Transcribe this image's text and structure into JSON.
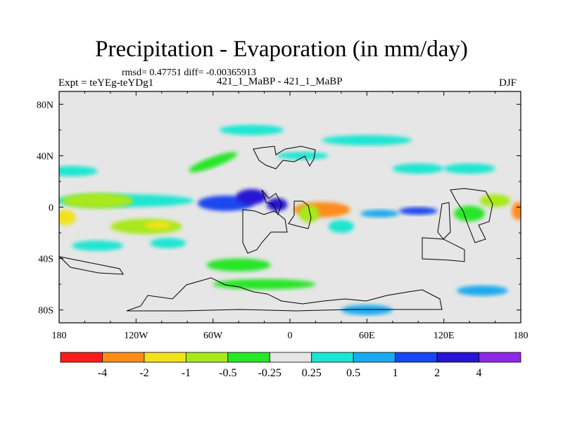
{
  "chart_data": {
    "type": "heatmap",
    "title": "Precipitation - Evaporation (in mm/day)",
    "stats_line": "rmsd= 0.47751  diff= -0.00365913",
    "left_label": "Expt = teYEg-teYDg1",
    "center_label": "421_1_MaBP - 421_1_MaBP",
    "right_label": "DJF",
    "projection": "cylindrical equidistant, lon 180..180 (centered on 0)",
    "xlim": [
      -180,
      180
    ],
    "ylim": [
      -90,
      90
    ],
    "x_ticks": [
      {
        "value": -180,
        "label": "180"
      },
      {
        "value": -120,
        "label": "120W"
      },
      {
        "value": -60,
        "label": "60W"
      },
      {
        "value": 0,
        "label": "0"
      },
      {
        "value": 60,
        "label": "60E"
      },
      {
        "value": 120,
        "label": "120E"
      },
      {
        "value": 180,
        "label": "180"
      }
    ],
    "y_ticks": [
      {
        "value": 80,
        "label": "80N"
      },
      {
        "value": 40,
        "label": "40N"
      },
      {
        "value": 0,
        "label": "0"
      },
      {
        "value": -40,
        "label": "40S"
      },
      {
        "value": -80,
        "label": "80S"
      }
    ],
    "colorbar": {
      "levels": [
        "-4",
        "-2",
        "-1",
        "-0.5",
        "-0.25",
        "0.25",
        "0.5",
        "1",
        "2",
        "4"
      ],
      "colors": [
        "#ff1a1a",
        "#ff8c1a",
        "#f2e21a",
        "#a8e81a",
        "#28e628",
        "#e6e6e6",
        "#1ae6d2",
        "#1aaaee",
        "#1a46ee",
        "#2814d2",
        "#8c28e6"
      ]
    },
    "anomalies": [
      {
        "lon": -130,
        "lat": 5,
        "rx": 55,
        "ry": 5,
        "value": 0.3,
        "angle": 0
      },
      {
        "lon": -150,
        "lat": 5,
        "rx": 28,
        "ry": 6,
        "value": -0.7,
        "angle": 0
      },
      {
        "lon": -175,
        "lat": -8,
        "rx": 8,
        "ry": 6,
        "value": -1.5,
        "angle": 0
      },
      {
        "lon": -50,
        "lat": 3,
        "rx": 22,
        "ry": 6,
        "value": 1.5,
        "angle": 0
      },
      {
        "lon": -30,
        "lat": 8,
        "rx": 12,
        "ry": 6,
        "value": 3.0,
        "angle": 0
      },
      {
        "lon": -10,
        "lat": 2,
        "rx": 8,
        "ry": 5,
        "value": 2.5,
        "angle": 0
      },
      {
        "lon": 25,
        "lat": -2,
        "rx": 22,
        "ry": 6,
        "value": -2.2,
        "angle": 0
      },
      {
        "lon": 15,
        "lat": -5,
        "rx": 8,
        "ry": 7,
        "value": -0.7,
        "angle": 0
      },
      {
        "lon": -112,
        "lat": -15,
        "rx": 28,
        "ry": 6,
        "value": -0.7,
        "angle": 0
      },
      {
        "lon": -103,
        "lat": -14,
        "rx": 10,
        "ry": 3,
        "value": -1.5,
        "angle": 0
      },
      {
        "lon": -95,
        "lat": -28,
        "rx": 14,
        "ry": 4,
        "value": 0.4,
        "angle": 0
      },
      {
        "lon": -150,
        "lat": -30,
        "rx": 20,
        "ry": 4,
        "value": 0.4,
        "angle": 0
      },
      {
        "lon": -40,
        "lat": -45,
        "rx": 25,
        "ry": 5,
        "value": -0.4,
        "angle": 0
      },
      {
        "lon": 40,
        "lat": -15,
        "rx": 10,
        "ry": 5,
        "value": 0.4,
        "angle": 0
      },
      {
        "lon": 70,
        "lat": -5,
        "rx": 15,
        "ry": 3,
        "value": 0.7,
        "angle": 0
      },
      {
        "lon": 100,
        "lat": -3,
        "rx": 15,
        "ry": 3,
        "value": 1.2,
        "angle": 0
      },
      {
        "lon": 140,
        "lat": -5,
        "rx": 12,
        "ry": 6,
        "value": -0.5,
        "angle": 0
      },
      {
        "lon": 160,
        "lat": 5,
        "rx": 12,
        "ry": 5,
        "value": -0.7,
        "angle": 0
      },
      {
        "lon": 178,
        "lat": -3,
        "rx": 5,
        "ry": 7,
        "value": -2.5,
        "angle": 0
      },
      {
        "lon": -60,
        "lat": 35,
        "rx": 20,
        "ry": 4,
        "value": -0.5,
        "angle": 20
      },
      {
        "lon": -170,
        "lat": 28,
        "rx": 20,
        "ry": 4,
        "value": 0.4,
        "angle": 0
      },
      {
        "lon": 60,
        "lat": 52,
        "rx": 35,
        "ry": 4,
        "value": 0.4,
        "angle": 0
      },
      {
        "lon": 100,
        "lat": 30,
        "rx": 20,
        "ry": 4,
        "value": 0.4,
        "angle": 0
      },
      {
        "lon": 140,
        "lat": 30,
        "rx": 20,
        "ry": 4,
        "value": 0.4,
        "angle": 0
      },
      {
        "lon": -30,
        "lat": 60,
        "rx": 25,
        "ry": 4,
        "value": 0.4,
        "angle": 0
      },
      {
        "lon": 10,
        "lat": 40,
        "rx": 20,
        "ry": 3,
        "value": 0.4,
        "angle": 0
      },
      {
        "lon": -20,
        "lat": -60,
        "rx": 40,
        "ry": 4,
        "value": -0.4,
        "angle": 0
      },
      {
        "lon": 60,
        "lat": -80,
        "rx": 20,
        "ry": 4,
        "value": 0.5,
        "angle": 0
      },
      {
        "lon": 150,
        "lat": -65,
        "rx": 20,
        "ry": 4,
        "value": 0.5,
        "angle": 0
      }
    ]
  }
}
